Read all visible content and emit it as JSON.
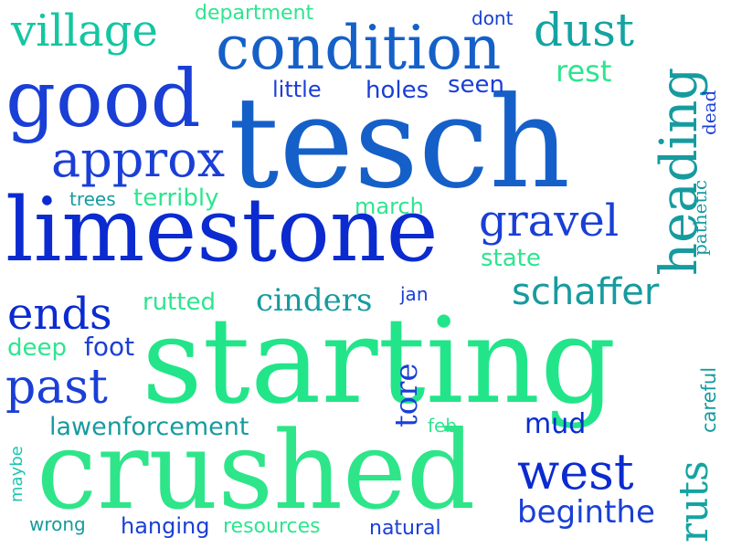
{
  "words": {
    "tesch": "tesch",
    "starting": "starting",
    "crushed": "crushed",
    "limestone": "limestone",
    "good": "good",
    "condition": "condition",
    "heading": "heading",
    "village": "village",
    "approx": "approx",
    "gravel": "gravel",
    "schaffer": "schaffer",
    "dust": "dust",
    "west": "west",
    "past": "past",
    "ends": "ends",
    "ruts": "ruts",
    "cinders": "cinders",
    "rest": "rest",
    "department": "department",
    "dont": "dont",
    "little": "little",
    "holes": "holes",
    "seen": "seen",
    "trees": "trees",
    "terribly": "terribly",
    "march": "march",
    "state": "state",
    "pathetic": "pathetic",
    "dead": "dead",
    "rutted": "rutted",
    "jan": "jan",
    "deep": "deep",
    "foot": "foot",
    "tore": "tore",
    "careful": "careful",
    "lawenforcement": "lawenforcement",
    "feb": "feb",
    "mud": "mud",
    "maybe": "maybe",
    "beginthe": "beginthe",
    "wrong": "wrong",
    "hanging": "hanging",
    "resources": "resources",
    "natural": "natural"
  },
  "colors": {
    "royal_blue": "#1a3fd6",
    "deep_blue": "#0b2bd0",
    "mid_blue": "#1560c8",
    "teal": "#14a3a3",
    "teal_dark": "#169b9f",
    "green": "#22e58a",
    "mint": "#2ee58f",
    "aqua": "#1ec6b0"
  }
}
